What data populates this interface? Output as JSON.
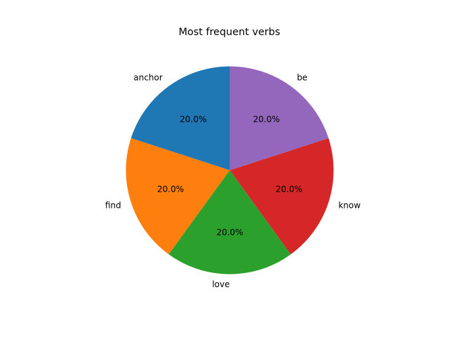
{
  "chart_data": {
    "type": "pie",
    "title": "Most frequent verbs",
    "categories": [
      "anchor",
      "find",
      "love",
      "know",
      "be"
    ],
    "values": [
      20,
      20,
      20,
      20,
      20
    ],
    "percent_labels": [
      "20.0%",
      "20.0%",
      "20.0%",
      "20.0%",
      "20.0%"
    ],
    "colors": [
      "#1f77b4",
      "#ff7f0e",
      "#2ca02c",
      "#d62728",
      "#9467bd"
    ],
    "start_angle_deg": 90,
    "direction": "counterclockwise",
    "legend": "none"
  }
}
